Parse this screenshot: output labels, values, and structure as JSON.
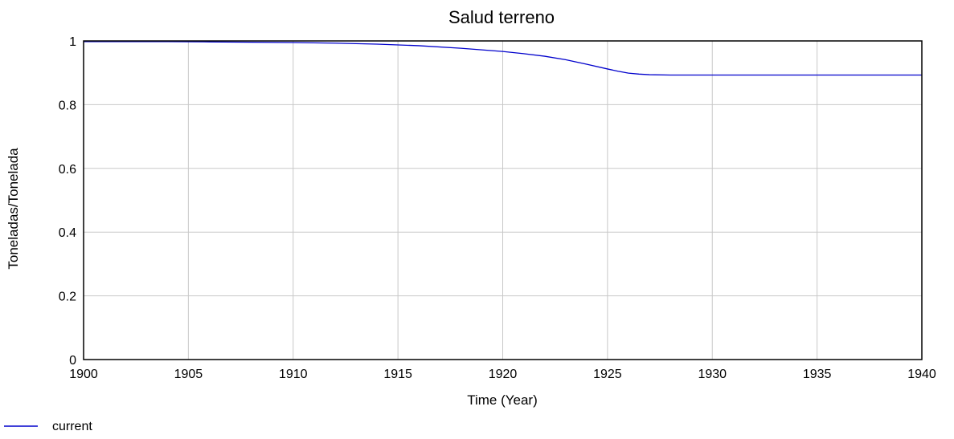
{
  "chart_data": {
    "type": "line",
    "title": "Salud terreno",
    "xlabel": "Time (Year)",
    "ylabel": "Toneladas/Tonelada",
    "xlim": [
      1900,
      1940
    ],
    "ylim": [
      0,
      1
    ],
    "xticks": [
      1900,
      1905,
      1910,
      1915,
      1920,
      1925,
      1930,
      1935,
      1940
    ],
    "yticks": [
      0,
      0.2,
      0.4,
      0.6,
      0.8,
      1
    ],
    "xtick_labels": [
      "1900",
      "1905",
      "1910",
      "1915",
      "1920",
      "1925",
      "1930",
      "1935",
      "1940"
    ],
    "ytick_labels": [
      "0",
      "0.2",
      "0.4",
      "0.6",
      "0.8",
      "1"
    ],
    "grid": true,
    "legend_position": "bottom-left",
    "series": [
      {
        "name": "current",
        "color": "#0000cc",
        "x": [
          1900,
          1902,
          1904,
          1906,
          1908,
          1910,
          1912,
          1914,
          1916,
          1918,
          1920,
          1921,
          1922,
          1923,
          1924,
          1925,
          1925.5,
          1926,
          1926.5,
          1927,
          1928,
          1930,
          1935,
          1940
        ],
        "y": [
          0.998,
          0.998,
          0.998,
          0.997,
          0.996,
          0.995,
          0.993,
          0.99,
          0.985,
          0.977,
          0.967,
          0.96,
          0.952,
          0.941,
          0.927,
          0.912,
          0.905,
          0.899,
          0.896,
          0.894,
          0.893,
          0.893,
          0.893,
          0.893
        ]
      }
    ]
  }
}
